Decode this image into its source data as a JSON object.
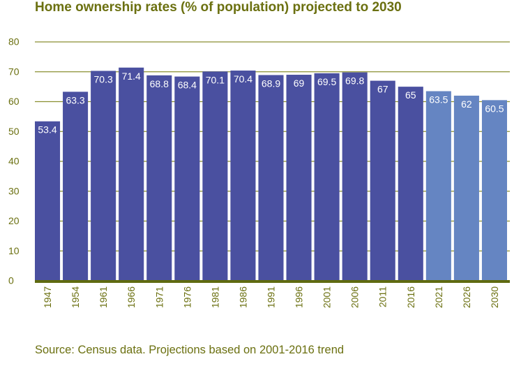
{
  "chart_data": {
    "type": "bar",
    "title": "Home ownership rates (% of population) projected to 2030",
    "xlabel": "",
    "ylabel": "",
    "ylim": [
      0,
      80
    ],
    "yticks": [
      0,
      10,
      20,
      30,
      40,
      50,
      60,
      70,
      80
    ],
    "grid": true,
    "categories": [
      "1947",
      "1954",
      "1961",
      "1966",
      "1971",
      "1976",
      "1981",
      "1986",
      "1991",
      "1996",
      "2001",
      "2006",
      "2011",
      "2016",
      "2021",
      "2026",
      "2030"
    ],
    "values": [
      53.4,
      63.3,
      70.3,
      71.4,
      68.8,
      68.4,
      70.1,
      70.4,
      68.9,
      69,
      69.5,
      69.8,
      67,
      65,
      63.5,
      62,
      60.5
    ],
    "data_labels": [
      "53.4",
      "63.3",
      "70.3",
      "71.4",
      "68.8",
      "68.4",
      "70.1",
      "70.4",
      "68.9",
      "69",
      "69.5",
      "69.8",
      "67",
      "65",
      "63.5",
      "62",
      "60.5"
    ],
    "projected": [
      false,
      false,
      false,
      false,
      false,
      false,
      false,
      false,
      false,
      false,
      false,
      false,
      false,
      false,
      true,
      true,
      true
    ],
    "colors": {
      "actual": "#4a50a0",
      "projected": "#6585c2",
      "grid": "#8a8f30",
      "axis": "#5f6a10",
      "text": "#6b7010"
    },
    "source": "Source: Census data. Projections based on 2001-2016 trend"
  }
}
